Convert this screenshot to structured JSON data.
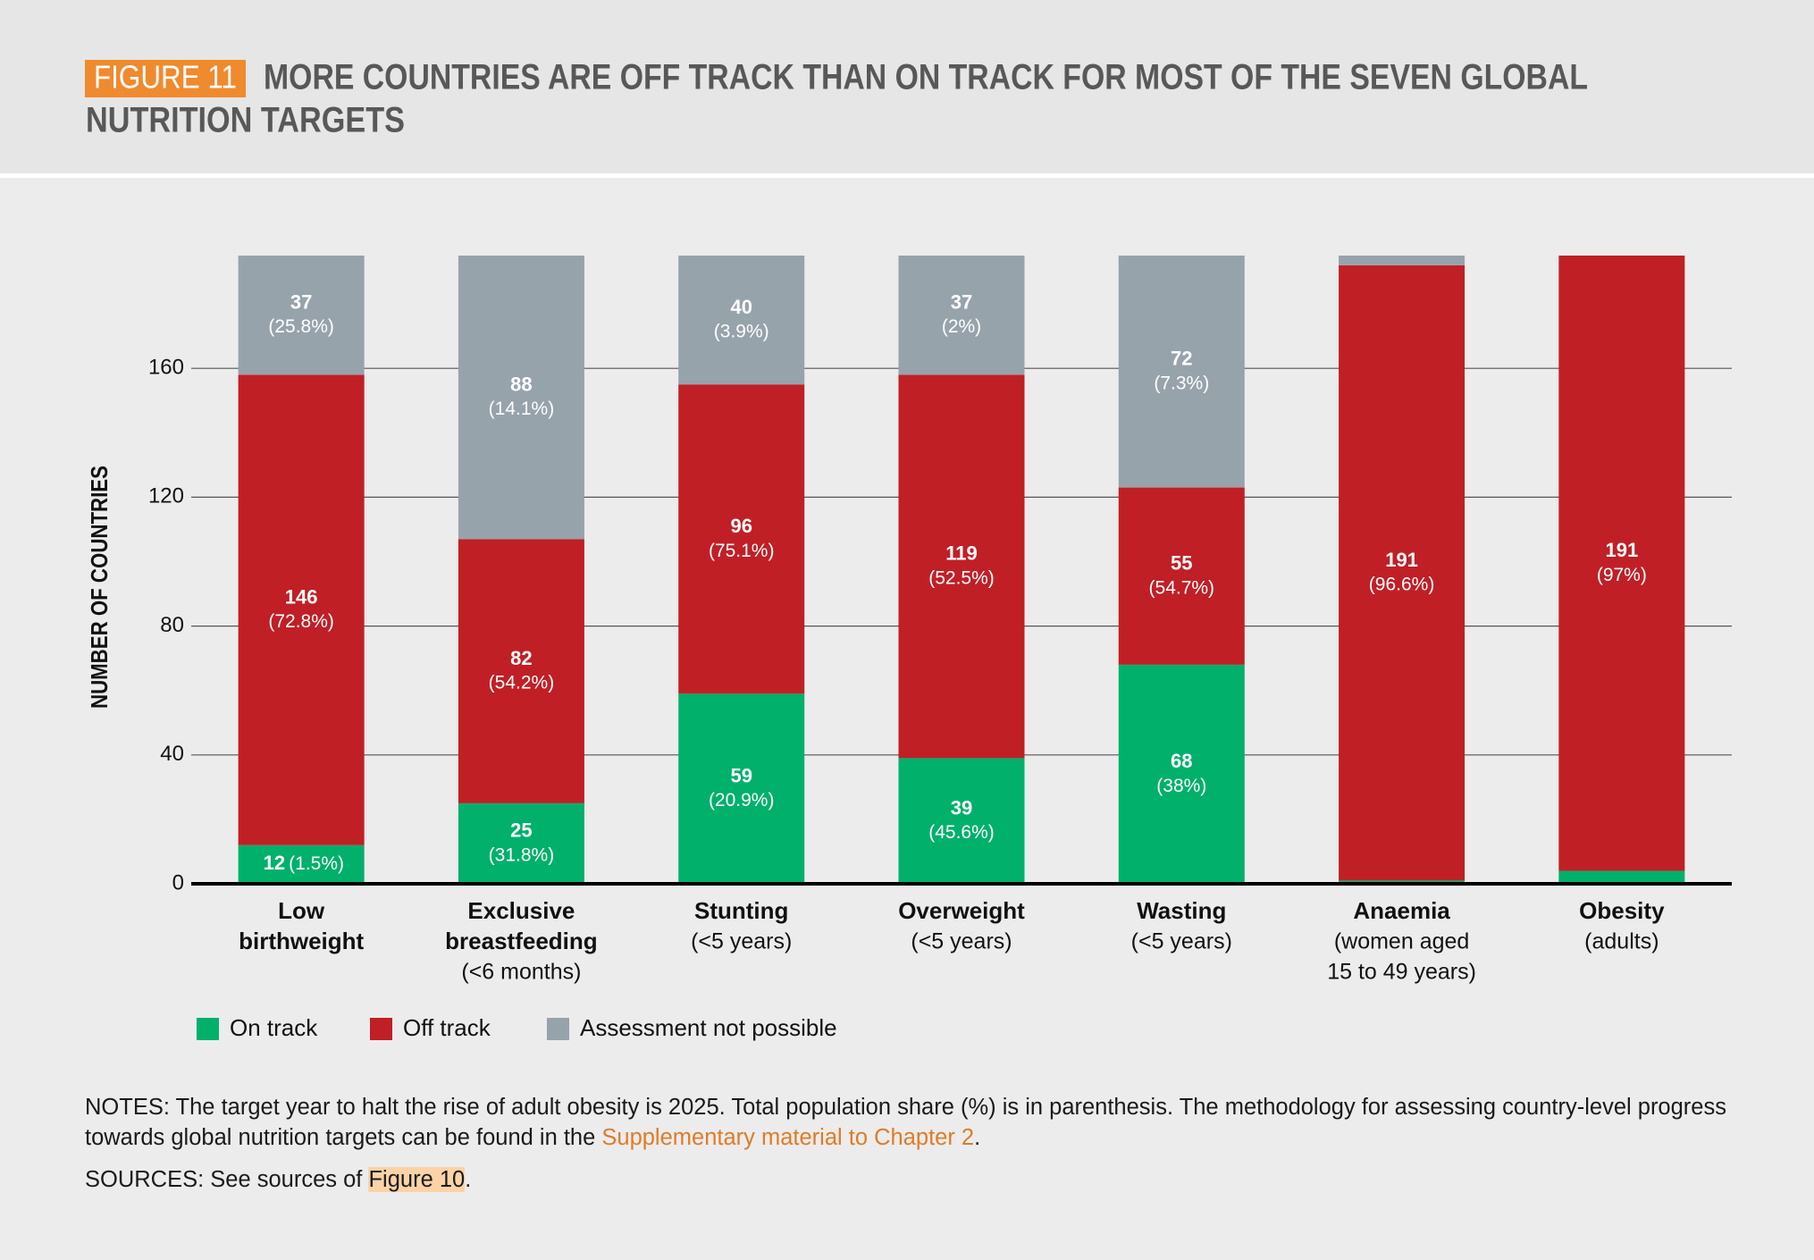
{
  "chart_data": {
    "type": "stacked-bar",
    "figure_label": "FIGURE 11",
    "title": [
      "MORE COUNTRIES ARE OFF TRACK THAN ON TRACK FOR MOST OF THE SEVEN GLOBAL",
      "NUTRITION TARGETS"
    ],
    "y_label": "NUMBER OF COUNTRIES",
    "categories": [
      [
        "Low",
        "birthweight"
      ],
      [
        "Exclusive",
        "breastfeeding"
      ],
      [
        "Stunting"
      ],
      [
        "Overweight"
      ],
      [
        "Wasting"
      ],
      [
        "Anaemia"
      ],
      [
        "Obesity"
      ]
    ],
    "category_notes": [
      [],
      [
        "(<6 months)"
      ],
      [
        "(<5 years)"
      ],
      [
        "(<5 years)"
      ],
      [
        "(<5 years)"
      ],
      [
        "(women aged",
        "15 to 49 years)"
      ],
      [
        "(adults)"
      ]
    ],
    "series": [
      {
        "name": "On track",
        "color": "#00b06b",
        "values": [
          12,
          25,
          59,
          39,
          68,
          1,
          4
        ],
        "share_labels": [
          "(1.5%)",
          "(31.8%)",
          "(20.9%)",
          "(45.6%)",
          "(38%)",
          null,
          null
        ]
      },
      {
        "name": "Off track",
        "color": "#c01f26",
        "values": [
          146,
          82,
          96,
          119,
          55,
          191,
          191
        ],
        "share_labels": [
          "(72.8%)",
          "(54.2%)",
          "(75.1%)",
          "(52.5%)",
          "(54.7%)",
          "(96.6%)",
          "(97%)"
        ]
      },
      {
        "name": "Assessment not possible",
        "color": "#97a3ab",
        "values": [
          37,
          88,
          40,
          37,
          72,
          3,
          0
        ],
        "share_labels": [
          "(25.8%)",
          "(14.1%)",
          "(3.9%)",
          "(2%)",
          "(7.3%)",
          null,
          null
        ]
      }
    ],
    "ylim": [
      0,
      195
    ],
    "yticks": [
      0,
      40,
      80,
      120,
      160
    ],
    "grid": true,
    "notes": {
      "text": "NOTES: The target year to halt the rise of adult obesity is 2025. Total population share (%) is in parenthesis. The methodology for assessing country-level progress towards global nutrition targets can be found in the ",
      "link": "Supplementary material to Chapter 2",
      "end": "."
    },
    "sources": {
      "text": "SOURCES: See sources of ",
      "link": "Figure 10",
      "end": "."
    }
  }
}
